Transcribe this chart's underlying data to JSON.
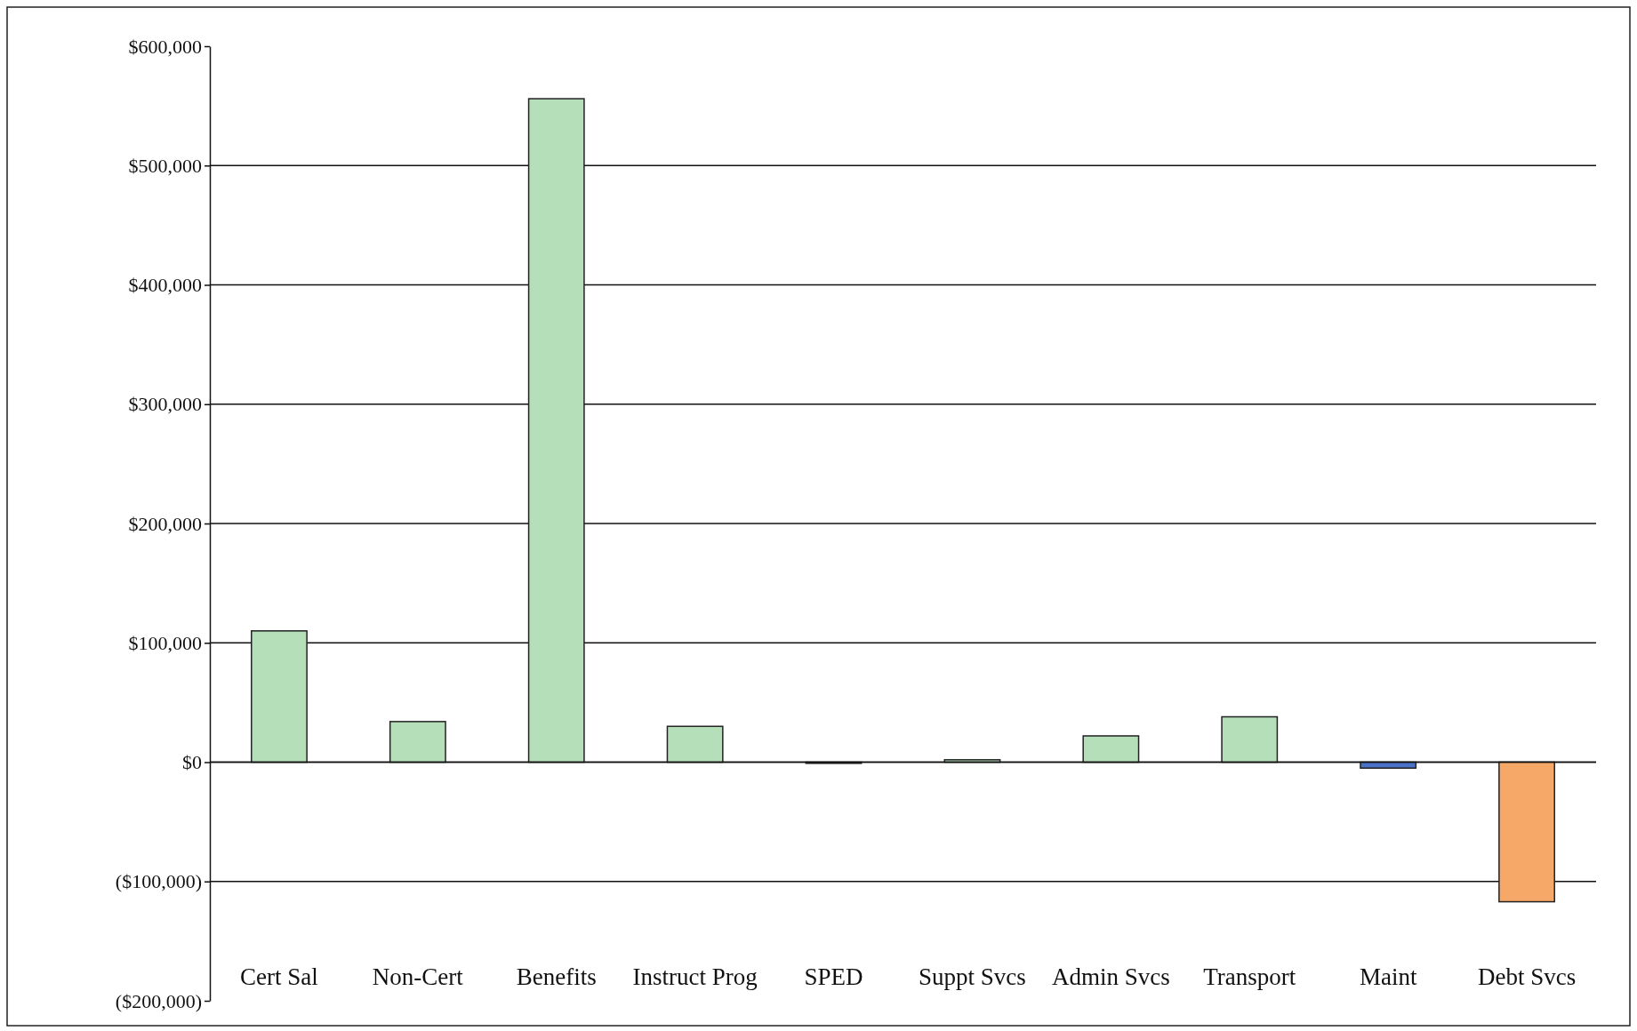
{
  "chart_data": {
    "type": "bar",
    "categories": [
      "Cert Sal",
      "Non-Cert",
      "Benefits",
      "Instruct Prog",
      "SPED",
      "Suppt Svcs",
      "Admin Svcs",
      "Transport",
      "Maint",
      "Debt Svcs"
    ],
    "values": [
      110000,
      34000,
      556000,
      30000,
      -1000,
      2000,
      22000,
      38000,
      -5000,
      -117000
    ],
    "colors": [
      "#b5dfb8",
      "#b5dfb8",
      "#b5dfb8",
      "#b5dfb8",
      "#b5dfb8",
      "#b5dfb8",
      "#b5dfb8",
      "#b5dfb8",
      "#4a72c8",
      "#f5a868"
    ],
    "ylim": [
      -200000,
      600000
    ],
    "yticks": [
      {
        "value": -200000,
        "label": "($200,000)"
      },
      {
        "value": -100000,
        "label": "($100,000)"
      },
      {
        "value": 0,
        "label": "$0"
      },
      {
        "value": 100000,
        "label": "$100,000"
      },
      {
        "value": 200000,
        "label": "$200,000"
      },
      {
        "value": 300000,
        "label": "$300,000"
      },
      {
        "value": 400000,
        "label": "$400,000"
      },
      {
        "value": 500000,
        "label": "$500,000"
      },
      {
        "value": 600000,
        "label": "$600,000"
      }
    ],
    "grid": "y"
  }
}
